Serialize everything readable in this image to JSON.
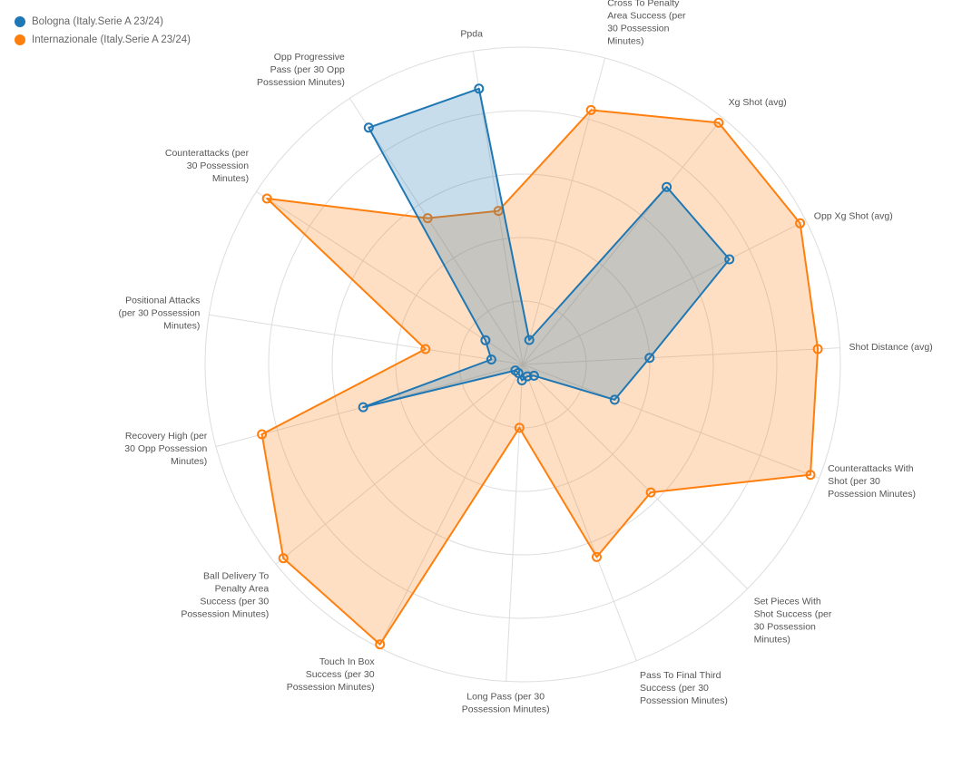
{
  "chart_data": {
    "type": "radar",
    "title": "",
    "axes": [
      "Ppda",
      "Cross To Penalty Area Success (per 30 Possession Minutes)",
      "Xg Shot (avg)",
      "Opp Xg Shot (avg)",
      "Shot Distance (avg)",
      "Counterattacks With Shot (per 30 Possession Minutes)",
      "Set Pieces With Shot Success (per 30 Possession Minutes)",
      "Pass To Final Third Success (per 30 Possession Minutes)",
      "Long Pass (per 30 Possession Minutes)",
      "Touch In Box Success (per 30 Possession Minutes)",
      "Ball Delivery To Penalty Area Success (per 30 Possession Minutes)",
      "Recovery High (per 30 Opp Possession Minutes)",
      "Positional Attacks (per 30 Possession Minutes)",
      "Counterattacks (per 30 Possession Minutes)",
      "Opp Progressive Pass (per 30 Opp Possession Minutes)"
    ],
    "range": [
      0,
      1
    ],
    "grid": true,
    "legend_position": "top-left",
    "series": [
      {
        "name": "Bologna (Italy.Serie A 23/24)",
        "color": "#1f77b4",
        "values": [
          0.88,
          0.08,
          0.72,
          0.73,
          0.4,
          0.31,
          0.05,
          0.04,
          0.05,
          0.03,
          0.03,
          0.52,
          0.1,
          0.14,
          0.89
        ]
      },
      {
        "name": "Internazionale (Italy.Serie A 23/24)",
        "color": "#ff7f0e",
        "values": [
          0.49,
          0.83,
          0.98,
          0.98,
          0.93,
          0.97,
          0.57,
          0.65,
          0.2,
          0.99,
          0.97,
          0.85,
          0.31,
          0.96,
          0.55
        ]
      }
    ]
  }
}
